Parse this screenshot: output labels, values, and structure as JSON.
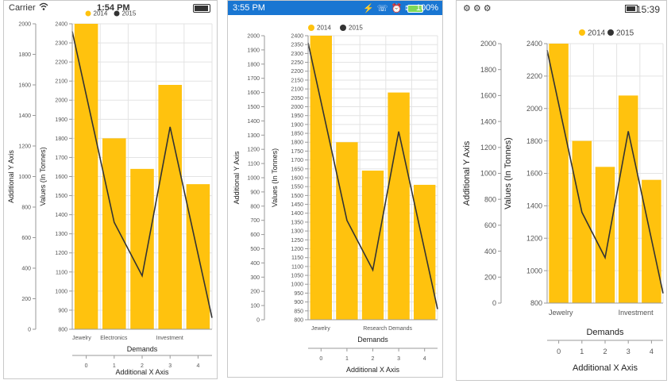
{
  "ios_status": {
    "carrier": "Carrier",
    "time": "1:54 PM"
  },
  "uwp_status": {
    "time": "3:55 PM",
    "battery": "100%"
  },
  "android_status": {
    "time": "15:39"
  },
  "legend": [
    "2014",
    "2015"
  ],
  "colors": {
    "bar": "#FFC20E",
    "line": "#333333",
    "grid": "#e3e3e3",
    "axis": "#9a9a9a",
    "uwp_bar": "#1976d2"
  },
  "labels": {
    "additional_y": "Additional Y Axis",
    "primary_y": "Values (In Tonnes)",
    "primary_x": "Demands",
    "additional_x": "Additional X Axis"
  },
  "ios_x_labels": [
    "Jewelry",
    "Electronics",
    "",
    "Investment",
    ""
  ],
  "uwp_x_labels": [
    "Jewelry",
    "",
    "Research Demands",
    "",
    ""
  ],
  "android_x_labels": [
    "Jewelry",
    "",
    "",
    "Investment",
    ""
  ],
  "chart_data": {
    "type": "bar",
    "categories": [
      "Jewelry",
      "Electronics",
      "Research",
      "Investment",
      "Demands"
    ],
    "ylabel": "Values (In Tonnes)",
    "xlabel": "Demands",
    "ylim": [
      800,
      2400
    ],
    "secondary_ylim": [
      0,
      2000
    ],
    "secondary_xlim": [
      0,
      4
    ],
    "secondary_ylabel": "Additional Y Axis",
    "secondary_xlabel": "Additional X Axis",
    "series": [
      {
        "name": "2014",
        "type": "bar",
        "values": [
          2400,
          1800,
          1640,
          2080,
          1560
        ]
      },
      {
        "name": "2015",
        "type": "line",
        "values": [
          2360,
          1360,
          1080,
          1860,
          860
        ]
      }
    ]
  }
}
